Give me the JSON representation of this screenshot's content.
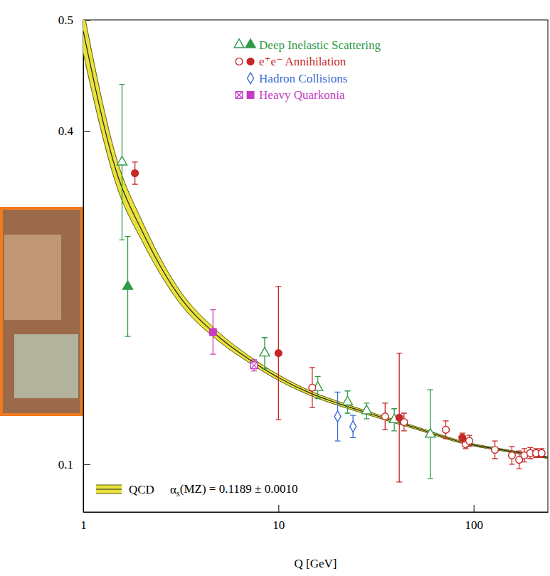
{
  "chart_data": {
    "type": "scatter",
    "x_label": "Q [GeV]",
    "log": "x",
    "grid": false,
    "legend": "top-right",
    "xlim": [
      1,
      240
    ],
    "xticks": [
      1,
      10,
      100
    ],
    "ylim": [
      0.057,
      0.5
    ],
    "yticks": [
      0.1,
      0.4,
      0.5
    ],
    "annotations": [
      "αs(MZ) = 0.1189 ± 0.0010"
    ],
    "series": [
      {
        "name": "Deep Inelastic Scattering",
        "color": "#2f9a45",
        "marker": "triangle-open",
        "x": [
          1.58,
          8.5,
          15.9,
          22.6,
          28.3,
          39.2,
          60
        ],
        "values": [
          0.372,
          0.2,
          0.169,
          0.156,
          0.148,
          0.14,
          0.127
        ],
        "errors": [
          0.07,
          0.014,
          0.01,
          0.01,
          0.007,
          0.01,
          0.04
        ]
      },
      {
        "name": "Deep Inelastic Scattering",
        "color": "#2f9a45",
        "marker": "triangle",
        "x": [
          1.69
        ],
        "values": [
          0.26
        ],
        "errors": [
          0.045
        ]
      },
      {
        "name": "e⁺e⁻ Annihilation",
        "color": "#c62828",
        "marker": "circle-open",
        "x": [
          14.9,
          35.2,
          44,
          72,
          91,
          95,
          128.5,
          157,
          171,
          182,
          195,
          209,
          223
        ],
        "values": [
          0.169,
          0.143,
          0.138,
          0.131,
          0.118,
          0.121,
          0.113,
          0.108,
          0.104,
          0.108,
          0.11,
          0.11,
          0.11
        ],
        "errors": [
          0.018,
          0.012,
          0.008,
          0.008,
          0.004,
          0.005,
          0.008,
          0.008,
          0.008,
          0.006,
          0.005,
          0.004,
          0.004
        ]
      },
      {
        "name": "e⁺e⁻ Annihilation",
        "color": "#c62828",
        "marker": "circle",
        "x": [
          1.84,
          10,
          41.6,
          87.5
        ],
        "values": [
          0.362,
          0.2,
          0.142,
          0.124
        ],
        "errors": [
          0.01,
          0.06,
          0.058,
          0.004
        ]
      },
      {
        "name": "Hadron Collisions",
        "color": "#3b6bd6",
        "marker": "diamond-open",
        "x": [
          20.1,
          24.1
        ],
        "values": [
          0.143,
          0.134
        ],
        "errors": [
          0.022,
          0.01
        ]
      },
      {
        "name": "Heavy Quarkonia",
        "color": "#c43cc4",
        "marker": "square-cross",
        "x": [
          7.5
        ],
        "values": [
          0.189
        ],
        "errors": [
          0.005
        ]
      },
      {
        "name": "Heavy Quarkonia",
        "color": "#c43cc4",
        "marker": "square",
        "x": [
          4.62
        ],
        "values": [
          0.219
        ],
        "errors": [
          0.02
        ]
      },
      {
        "name": "QCD",
        "type": "band",
        "color": "#e8e23a",
        "x": [
          1,
          1.5,
          2,
          3,
          5,
          7,
          10,
          15,
          20,
          30,
          50,
          91.19,
          150,
          240
        ],
        "values": [
          0.49,
          0.36,
          0.31,
          0.255,
          0.214,
          0.195,
          0.178,
          0.163,
          0.155,
          0.145,
          0.133,
          0.1189,
          0.112,
          0.106
        ],
        "errors": [
          0.02,
          0.012,
          0.009,
          0.006,
          0.004,
          0.003,
          0.0025,
          0.002,
          0.0018,
          0.0015,
          0.0012,
          0.001,
          0.0009,
          0.0008
        ]
      }
    ]
  }
}
